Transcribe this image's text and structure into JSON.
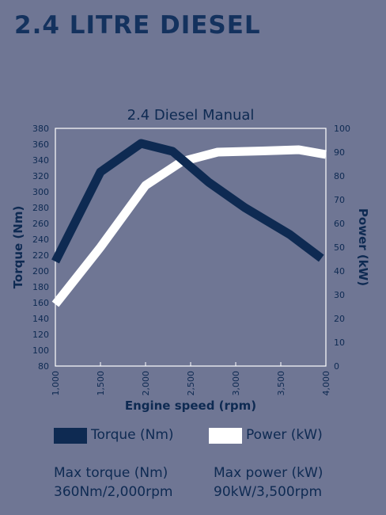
{
  "page": {
    "heading": "2.4 LITRE DIESEL"
  },
  "chart_data": {
    "type": "line",
    "title": "2.4 Diesel Manual",
    "xlabel": "Engine speed (rpm)",
    "ylabel_left": "Torque (Nm)",
    "ylabel_right": "Power (kW)",
    "xlim": [
      1000,
      4000
    ],
    "ylim_left": [
      80,
      380
    ],
    "ylim_right": [
      0,
      100
    ],
    "x_ticks": [
      1000,
      1500,
      2000,
      2500,
      3000,
      3500,
      4000
    ],
    "x_tick_labels": [
      "1,000",
      "1,500",
      "2,000",
      "2,500",
      "3,000",
      "3,500",
      "4,000"
    ],
    "y_left_ticks": [
      80,
      100,
      120,
      140,
      160,
      180,
      200,
      220,
      240,
      260,
      280,
      300,
      320,
      340,
      360,
      380
    ],
    "y_left_tick_labels": [
      "80",
      "100",
      "120",
      "140",
      "160",
      "180",
      "200",
      "220",
      "240",
      "260",
      "280",
      "300",
      "320",
      "340",
      "360",
      "380"
    ],
    "y_right_ticks": [
      0,
      10,
      20,
      30,
      40,
      50,
      60,
      70,
      80,
      90,
      100
    ],
    "y_right_tick_labels": [
      "0",
      "10",
      "20",
      "30",
      "40",
      "50",
      "60",
      "70",
      "80",
      "90",
      "100"
    ],
    "grid": false,
    "legend_placement": "bottom",
    "series": [
      {
        "name": "Torque (Nm)",
        "axis": "left",
        "color": "#0e2a52",
        "x": [
          1000,
          1500,
          1950,
          2300,
          2700,
          3100,
          3600,
          3950
        ],
        "y": [
          212,
          325,
          361,
          351,
          312,
          280,
          246,
          216
        ]
      },
      {
        "name": "Power (kW)",
        "axis": "right",
        "color": "#ffffff",
        "x": [
          1000,
          1500,
          2000,
          2400,
          2800,
          3300,
          3700,
          4000
        ],
        "y": [
          26,
          50,
          76,
          86,
          90,
          90.5,
          91,
          89
        ]
      }
    ]
  },
  "specs": {
    "torque_label": "Max torque (Nm)",
    "torque_value": "360Nm/2,000rpm",
    "power_label": "Max power (kW)",
    "power_value": "90kW/3,500rpm"
  }
}
